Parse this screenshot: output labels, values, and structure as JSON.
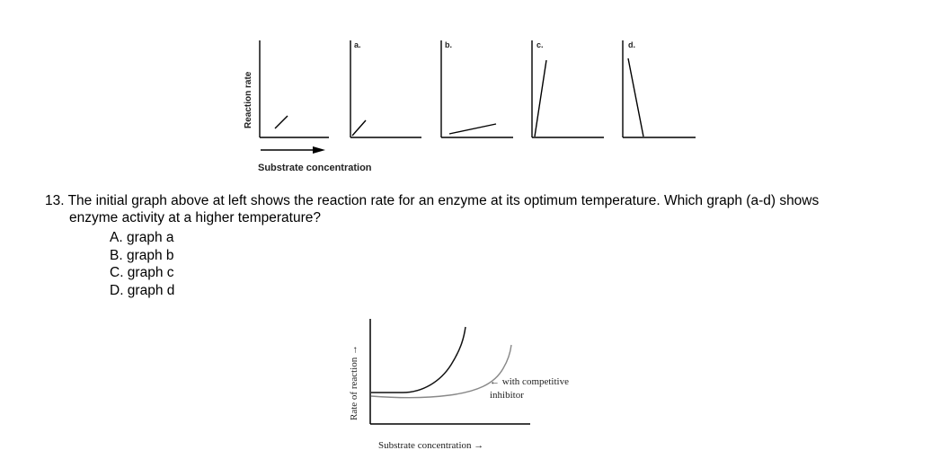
{
  "figure_top": {
    "y_axis_label": "Reaction rate",
    "x_axis_label": "Substrate concentration",
    "panels": [
      {
        "label": ""
      },
      {
        "label": "a."
      },
      {
        "label": "b."
      },
      {
        "label": "c."
      },
      {
        "label": "d."
      }
    ]
  },
  "question": {
    "stem_line1": "13. The initial graph above at left shows the reaction rate for an enzyme at its optimum temperature. Which graph (a-d) shows",
    "stem_line2": "enzyme activity at a higher temperature?",
    "choices": [
      {
        "text": "A. graph a"
      },
      {
        "text": "B. graph b"
      },
      {
        "text": "C. graph c"
      },
      {
        "text": "D. graph d"
      }
    ]
  },
  "figure_bottom": {
    "y_axis_label": "Rate of reaction →",
    "x_axis_label": "Substrate concentration →",
    "annotation_line1": "← with competitive",
    "annotation_line2": "inhibitor"
  }
}
